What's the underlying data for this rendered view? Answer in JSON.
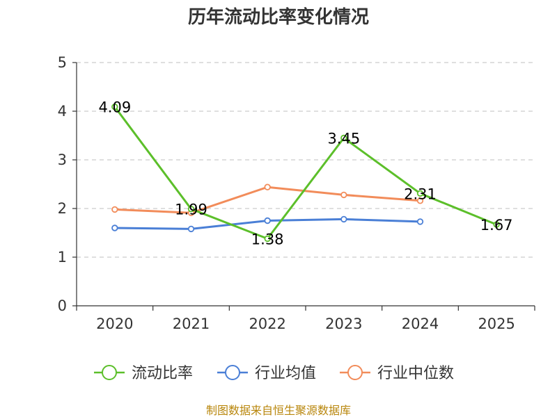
{
  "chart_data": {
    "type": "line",
    "title": "历年流动比率变化情况",
    "categories": [
      "2020",
      "2021",
      "2022",
      "2023",
      "2024",
      "2025"
    ],
    "y_ticks": [
      "0",
      "1",
      "2",
      "3",
      "4",
      "5"
    ],
    "ylim": [
      0,
      5
    ],
    "grid": true,
    "legend_position": "bottom",
    "series": [
      {
        "name": "流动比率",
        "color": "#5cbf2a",
        "values": [
          4.09,
          1.99,
          1.38,
          3.45,
          2.31,
          1.67
        ],
        "labels": [
          "4.09",
          "1.99",
          "1.38",
          "3.45",
          "2.31",
          "1.67"
        ]
      },
      {
        "name": "行业均值",
        "color": "#4a7fd6",
        "values": [
          1.6,
          1.58,
          1.75,
          1.78,
          1.73,
          null
        ]
      },
      {
        "name": "行业中位数",
        "color": "#f28c5a",
        "values": [
          1.98,
          1.91,
          2.44,
          2.28,
          2.16,
          null
        ]
      }
    ],
    "source": "制图数据来自恒生聚源数据库"
  }
}
